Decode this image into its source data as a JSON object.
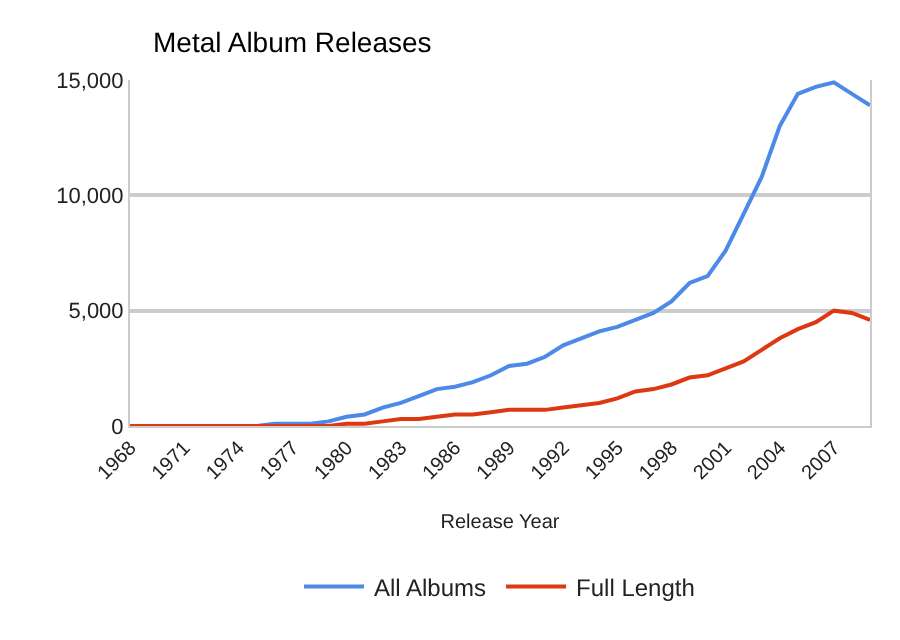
{
  "chart_data": {
    "type": "line",
    "title": "Metal Album Releases",
    "xlabel": "Release Year",
    "x": [
      1968,
      1969,
      1970,
      1971,
      1972,
      1973,
      1974,
      1975,
      1976,
      1977,
      1978,
      1979,
      1980,
      1981,
      1982,
      1983,
      1984,
      1985,
      1986,
      1987,
      1988,
      1989,
      1990,
      1991,
      1992,
      1993,
      1994,
      1995,
      1996,
      1997,
      1998,
      1999,
      2000,
      2001,
      2002,
      2003,
      2004,
      2005,
      2006,
      2007,
      2008,
      2009
    ],
    "series": [
      {
        "name": "All Albums",
        "color": "#4d8ae8",
        "values": [
          null,
          null,
          null,
          null,
          null,
          null,
          null,
          0,
          100,
          100,
          100,
          200,
          400,
          500,
          800,
          1000,
          1300,
          1600,
          1700,
          1900,
          2200,
          2600,
          2700,
          3000,
          3500,
          3800,
          4100,
          4300,
          4600,
          4900,
          5400,
          6200,
          6500,
          7600,
          9200,
          10800,
          13000,
          14400,
          14700,
          14900,
          14400,
          13900
        ]
      },
      {
        "name": "Full Length",
        "color": "#dc3912",
        "values": [
          0,
          0,
          0,
          0,
          0,
          0,
          0,
          0,
          0,
          0,
          0,
          0,
          100,
          100,
          200,
          300,
          300,
          400,
          500,
          500,
          600,
          700,
          700,
          700,
          800,
          900,
          1000,
          1200,
          1500,
          1600,
          1800,
          2100,
          2200,
          2500,
          2800,
          3300,
          3800,
          4200,
          4500,
          5000,
          4900,
          4600
        ]
      }
    ],
    "xlim": [
      1968,
      2009
    ],
    "xticks": [
      1968,
      1971,
      1974,
      1977,
      1980,
      1983,
      1986,
      1989,
      1992,
      1995,
      1998,
      2001,
      2004,
      2007
    ],
    "ylim": [
      0,
      15000
    ],
    "yticks": [
      {
        "value": 0,
        "label": "0"
      },
      {
        "value": 5000,
        "label": "5,000"
      },
      {
        "value": 10000,
        "label": "10,000"
      },
      {
        "value": 15000,
        "label": "15,000"
      }
    ],
    "grid": "y",
    "legend": "bottom",
    "marker": "none",
    "line_style": "solid"
  }
}
